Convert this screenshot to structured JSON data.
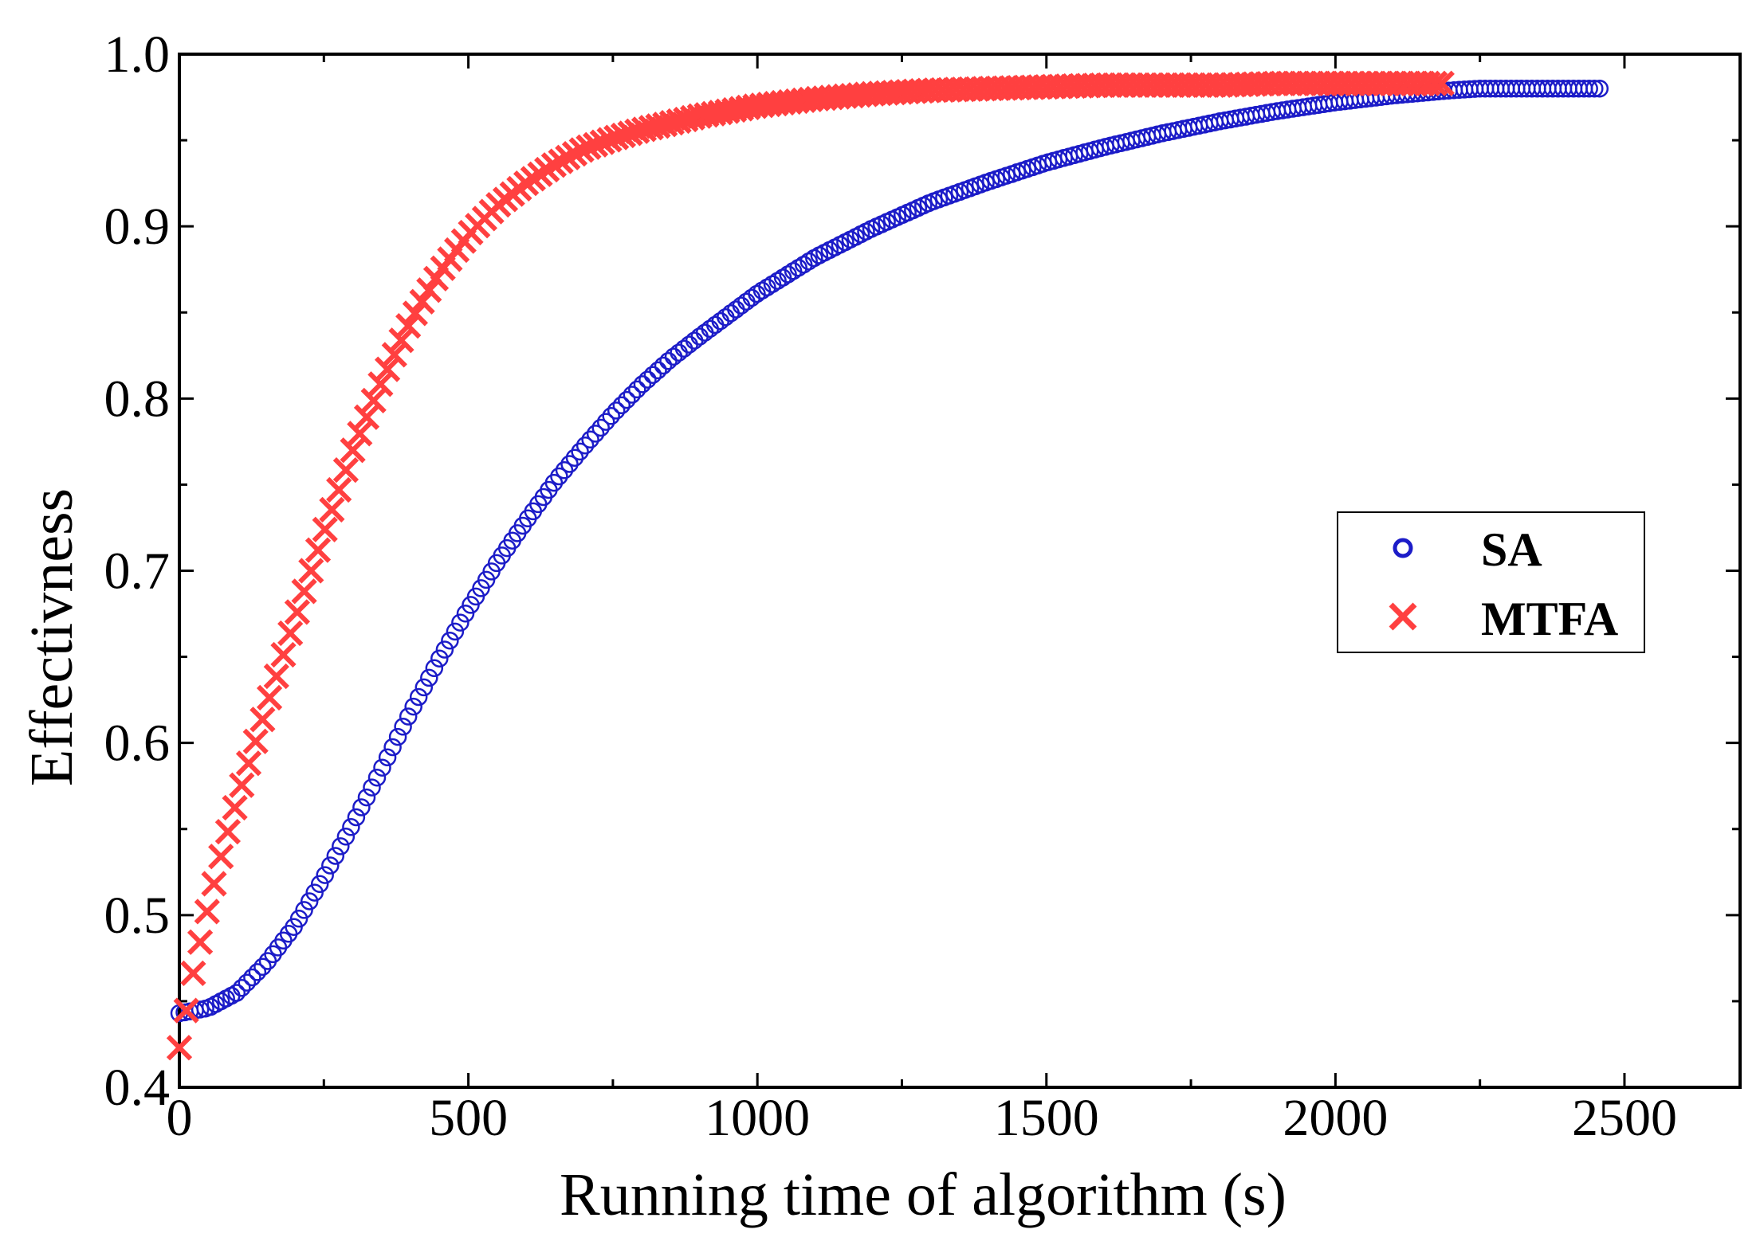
{
  "chart_data": {
    "type": "scatter",
    "title": "",
    "xlabel": "Running time of algorithm (s)",
    "ylabel": "Effectivness",
    "xlim": [
      0,
      2700
    ],
    "ylim": [
      0.4,
      1.0
    ],
    "xticks": [
      0,
      500,
      1000,
      1500,
      2000,
      2500
    ],
    "xtick_labels": [
      "0",
      "500",
      "1000",
      "1500",
      "2000",
      "2500"
    ],
    "yticks": [
      0.4,
      0.5,
      0.6,
      0.7,
      0.8,
      0.9,
      1.0
    ],
    "ytick_labels": [
      "0.4",
      "0.5",
      "0.6",
      "0.7",
      "0.8",
      "0.9",
      "1.0"
    ],
    "grid": false,
    "legend_position": "right-middle",
    "series": [
      {
        "name": "SA",
        "marker": "circle",
        "color": "#1c1cc8",
        "x": [
          0,
          50,
          100,
          150,
          200,
          250,
          300,
          350,
          400,
          450,
          500,
          550,
          600,
          650,
          700,
          750,
          800,
          850,
          900,
          1000,
          1100,
          1200,
          1300,
          1400,
          1500,
          1600,
          1700,
          1800,
          1900,
          2000,
          2100,
          2200,
          2250,
          2300,
          2350,
          2400,
          2460
        ],
        "y": [
          0.443,
          0.446,
          0.455,
          0.472,
          0.494,
          0.522,
          0.553,
          0.585,
          0.618,
          0.649,
          0.678,
          0.705,
          0.729,
          0.752,
          0.772,
          0.791,
          0.808,
          0.823,
          0.836,
          0.861,
          0.882,
          0.899,
          0.914,
          0.926,
          0.937,
          0.946,
          0.954,
          0.961,
          0.967,
          0.972,
          0.976,
          0.979,
          0.98,
          0.98,
          0.98,
          0.98,
          0.98
        ]
      },
      {
        "name": "MTFA",
        "marker": "x",
        "color": "#ff4040",
        "x": [
          0,
          25,
          50,
          75,
          100,
          150,
          200,
          250,
          300,
          350,
          400,
          450,
          500,
          550,
          600,
          650,
          700,
          750,
          800,
          900,
          1000,
          1100,
          1200,
          1300,
          1400,
          1500,
          1600,
          1700,
          1800,
          1900,
          2000,
          2100,
          2190
        ],
        "y": [
          0.423,
          0.468,
          0.505,
          0.538,
          0.567,
          0.62,
          0.672,
          0.722,
          0.77,
          0.81,
          0.845,
          0.873,
          0.895,
          0.912,
          0.925,
          0.936,
          0.945,
          0.951,
          0.956,
          0.964,
          0.97,
          0.974,
          0.977,
          0.979,
          0.98,
          0.981,
          0.982,
          0.982,
          0.982,
          0.983,
          0.983,
          0.983,
          0.983
        ]
      }
    ]
  }
}
